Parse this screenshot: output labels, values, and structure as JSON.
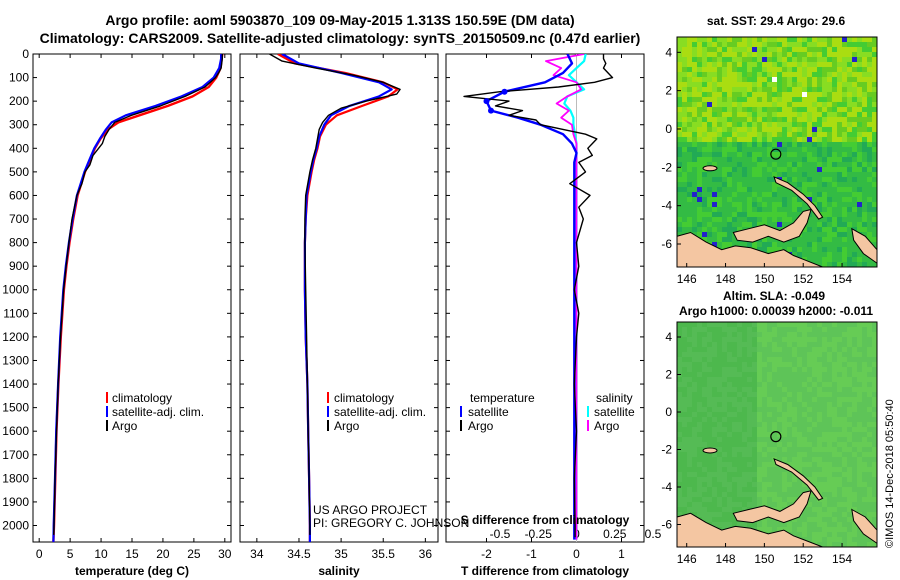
{
  "title_line1": "Argo profile: aoml 5903870_109 09-May-2015 1.313S 150.59E (DM data)",
  "title_line2": "Climatology: CARS2009. Satellite-adjusted climatology: synTS_20150509.nc (0.47d earlier)",
  "credit_line1": "US ARGO PROJECT",
  "credit_line2": "PI: GREGORY C. JOHNSON",
  "imos_stamp": "©IMOS 14-Dec-2018 05:50:40",
  "colors": {
    "climatology": "#ff0000",
    "satellite": "#0000ff",
    "argo": "#000000",
    "sal_satellite": "#00ffff",
    "sal_argo": "#ff00ff",
    "land": "#f4c6a2"
  },
  "chart_data": [
    {
      "id": "temperature",
      "type": "line",
      "xlabel": "temperature (deg C)",
      "xlim": [
        -1,
        31
      ],
      "xticks": [
        0,
        5,
        10,
        15,
        20,
        25,
        30
      ],
      "ylim": [
        0,
        2070
      ],
      "yticks": [
        0,
        100,
        200,
        300,
        400,
        500,
        600,
        700,
        800,
        900,
        1000,
        1100,
        1200,
        1300,
        1400,
        1500,
        1600,
        1700,
        1800,
        1900,
        2000
      ],
      "legend": [
        "climatology",
        "satellite-adj. clim.",
        "Argo"
      ],
      "series": [
        {
          "name": "climatology",
          "depth": [
            0,
            20,
            60,
            100,
            140,
            180,
            220,
            260,
            290,
            320,
            360,
            400,
            450,
            500,
            600,
            700,
            800,
            900,
            1000,
            1200,
            1400,
            1600,
            1800,
            2000,
            2070
          ],
          "values": [
            29.6,
            29.5,
            29.3,
            28.6,
            27.4,
            24.8,
            20.8,
            16.2,
            12.8,
            11.1,
            9.9,
            9.0,
            8.2,
            7.4,
            6.2,
            5.5,
            4.9,
            4.4,
            4.0,
            3.5,
            3.1,
            2.8,
            2.6,
            2.4,
            2.3
          ]
        },
        {
          "name": "satellite-adj. clim.",
          "depth": [
            0,
            20,
            60,
            100,
            140,
            180,
            220,
            260,
            290,
            320,
            360,
            400,
            450,
            500,
            600,
            700,
            800,
            900,
            1000,
            1200,
            1400,
            1600,
            1800,
            2000,
            2070
          ],
          "values": [
            29.4,
            29.4,
            29.1,
            28.2,
            26.4,
            23.0,
            18.8,
            14.0,
            11.7,
            10.8,
            9.8,
            8.9,
            8.1,
            7.3,
            6.1,
            5.4,
            4.8,
            4.3,
            3.9,
            3.4,
            3.05,
            2.75,
            2.55,
            2.35,
            2.3
          ]
        },
        {
          "name": "Argo",
          "depth": [
            0,
            20,
            40,
            60,
            80,
            100,
            140,
            180,
            220,
            260,
            290,
            320,
            350,
            380,
            400,
            430,
            470,
            500,
            550,
            600,
            700,
            800,
            900,
            1000,
            1200,
            1400,
            1600,
            1800,
            2000,
            2040
          ],
          "values": [
            29.6,
            29.6,
            29.5,
            29.4,
            29.0,
            28.5,
            26.8,
            23.6,
            19.6,
            14.9,
            12.2,
            11.3,
            10.6,
            10.2,
            9.6,
            8.7,
            8.2,
            7.4,
            6.9,
            6.1,
            5.3,
            4.8,
            4.35,
            3.95,
            3.45,
            3.05,
            2.8,
            2.55,
            2.4,
            2.35
          ]
        }
      ]
    },
    {
      "id": "salinity",
      "type": "line",
      "xlabel": "salinity",
      "xlim": [
        33.8,
        36.15
      ],
      "xticks": [
        34,
        34.5,
        35,
        35.5,
        36
      ],
      "ylim": [
        0,
        2070
      ],
      "legend": [
        "climatology",
        "satellite-adj. clim.",
        "Argo"
      ],
      "series": [
        {
          "name": "climatology",
          "depth": [
            0,
            40,
            80,
            120,
            150,
            180,
            220,
            260,
            300,
            350,
            400,
            450,
            500,
            600,
            700,
            800,
            1000,
            1200,
            1400,
            1600,
            1800,
            2000,
            2070
          ],
          "values": [
            34.25,
            34.45,
            35.05,
            35.5,
            35.67,
            35.56,
            35.25,
            34.95,
            34.82,
            34.75,
            34.72,
            34.68,
            34.65,
            34.6,
            34.58,
            34.57,
            34.57,
            34.58,
            34.6,
            34.61,
            34.62,
            34.63,
            34.63
          ]
        },
        {
          "name": "satellite-adj. clim.",
          "depth": [
            0,
            40,
            80,
            120,
            150,
            180,
            220,
            260,
            300,
            350,
            400,
            450,
            500,
            600,
            700,
            800,
            1000,
            1200,
            1400,
            1600,
            1800,
            2000,
            2070
          ],
          "values": [
            34.3,
            34.5,
            35.0,
            35.45,
            35.6,
            35.45,
            35.1,
            34.88,
            34.8,
            34.74,
            34.71,
            34.67,
            34.64,
            34.59,
            34.58,
            34.57,
            34.57,
            34.58,
            34.6,
            34.61,
            34.62,
            34.63,
            34.63
          ]
        },
        {
          "name": "Argo",
          "depth": [
            0,
            30,
            60,
            90,
            120,
            150,
            170,
            200,
            230,
            260,
            290,
            320,
            360,
            400,
            450,
            500,
            600,
            700,
            800,
            1000,
            1200,
            1400,
            1600,
            1800,
            2000,
            2040
          ],
          "values": [
            34.15,
            34.3,
            34.7,
            35.15,
            35.5,
            35.7,
            35.66,
            35.3,
            35.0,
            34.85,
            34.78,
            34.74,
            34.72,
            34.7,
            34.66,
            34.63,
            34.58,
            34.57,
            34.57,
            34.58,
            34.59,
            34.6,
            34.61,
            34.62,
            34.63,
            34.63
          ]
        }
      ]
    },
    {
      "id": "difference",
      "type": "line",
      "xlabel": "T difference from climatology",
      "xlabel2": "S difference from climatology",
      "xlim": [
        -2.9,
        1.5
      ],
      "xticks": [
        -2,
        -1,
        0,
        1
      ],
      "xticks2_values": [
        -0.5,
        -0.25,
        0,
        0.25,
        0.5
      ],
      "xticks2_labels": [
        "-0.5",
        "-0.25",
        "0",
        "0.25",
        "0.5"
      ],
      "ylim": [
        0,
        2070
      ],
      "legend_temperature_heading": "temperature",
      "legend_salinity_heading": "salinity",
      "legend_items": [
        "satellite",
        "Argo",
        "satellite",
        "Argo"
      ],
      "series": [
        {
          "name": "T satellite",
          "depth": [
            0,
            40,
            80,
            120,
            160,
            200,
            240,
            270,
            300,
            340,
            380,
            420,
            460,
            500,
            600,
            700,
            800,
            1000,
            1200,
            1500,
            1800,
            2000,
            2060
          ],
          "values": [
            -0.2,
            -0.1,
            -0.3,
            -0.7,
            -1.6,
            -2.0,
            -1.9,
            -1.3,
            -0.8,
            -0.3,
            -0.1,
            0.0,
            -0.05,
            -0.05,
            -0.05,
            -0.05,
            -0.05,
            -0.05,
            -0.05,
            -0.05,
            -0.05,
            -0.05,
            -0.05
          ]
        },
        {
          "name": "T Argo",
          "depth": [
            0,
            20,
            40,
            60,
            80,
            100,
            120,
            140,
            160,
            180,
            200,
            220,
            240,
            260,
            280,
            300,
            320,
            340,
            360,
            380,
            400,
            430,
            460,
            500,
            550,
            600,
            650,
            700,
            800,
            900,
            1000,
            1100,
            1200,
            1400,
            1600,
            1800,
            2000,
            2050
          ],
          "values": [
            0.6,
            0.6,
            0.65,
            0.6,
            0.7,
            0.8,
            0.4,
            -0.4,
            -1.7,
            -2.5,
            -1.5,
            -1.8,
            -1.2,
            -1.5,
            -0.9,
            -0.8,
            -0.3,
            0.2,
            0.45,
            0.35,
            0.25,
            0.35,
            0.05,
            0.2,
            -0.15,
            0.3,
            0.05,
            0.15,
            0.0,
            0.05,
            -0.05,
            0.05,
            0.0,
            -0.05,
            0.0,
            -0.05,
            -0.03,
            -0.03
          ]
        },
        {
          "name": "S satellite",
          "depth": [
            0,
            30,
            60,
            90,
            120,
            150,
            180,
            210,
            240,
            270,
            300,
            340,
            380,
            420,
            460,
            500,
            600,
            800,
            1000,
            1200,
            1500,
            1800,
            2000,
            2060
          ],
          "values": [
            0.06,
            0.05,
            0.0,
            -0.05,
            0.0,
            0.05,
            -0.06,
            -0.08,
            -0.04,
            -0.02,
            -0.02,
            -0.01,
            0.0,
            0.0,
            0.0,
            0.0,
            0.0,
            0.0,
            0.0,
            0.0,
            0.0,
            0.0,
            0.0,
            0.0
          ]
        },
        {
          "name": "S Argo",
          "depth": [
            0,
            30,
            60,
            90,
            120,
            150,
            180,
            210,
            240,
            270,
            300,
            340,
            380,
            420,
            460,
            500,
            600,
            800,
            1000,
            1200,
            1500,
            1800,
            2000,
            2060
          ],
          "values": [
            0.05,
            -0.2,
            -0.1,
            -0.15,
            0.0,
            0.03,
            -0.06,
            -0.13,
            -0.05,
            -0.1,
            -0.03,
            -0.02,
            0.0,
            0.0,
            0.0,
            0.0,
            0.0,
            0.0,
            0.0,
            0.0,
            0.0,
            0.0,
            0.0,
            0.0
          ]
        }
      ]
    },
    {
      "id": "sst_map",
      "type": "heatmap",
      "title": "sat. SST: 29.4 Argo: 29.6",
      "xlim": [
        145.5,
        155.8
      ],
      "ylim": [
        -7.2,
        4.8
      ],
      "xticks": [
        146,
        148,
        150,
        152,
        154
      ],
      "yticks": [
        4,
        2,
        0,
        -2,
        -4,
        -6
      ],
      "argo_location": {
        "lon": 150.59,
        "lat": -1.313
      }
    },
    {
      "id": "sla_map",
      "type": "heatmap",
      "title": "Altim. SLA: -0.049",
      "subtitle": "Argo h1000: 0.00039 h2000: -0.011",
      "xlim": [
        145.5,
        155.8
      ],
      "ylim": [
        -7.2,
        4.8
      ],
      "xticks": [
        146,
        148,
        150,
        152,
        154
      ],
      "yticks": [
        4,
        2,
        0,
        -2,
        -4,
        -6
      ],
      "argo_location": {
        "lon": 150.59,
        "lat": -1.313
      }
    }
  ]
}
